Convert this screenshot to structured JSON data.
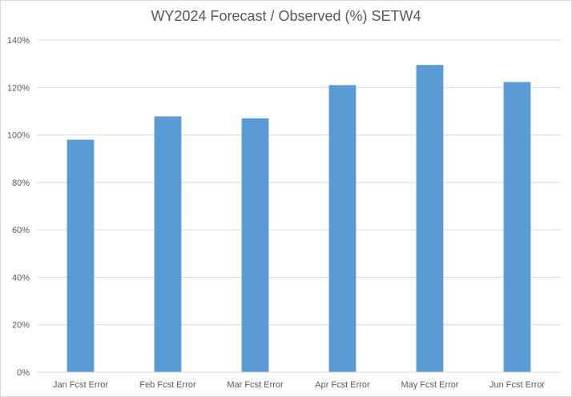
{
  "chart_data": {
    "type": "bar",
    "title": "WY2024 Forecast / Observed (%) SETW4",
    "xlabel": "",
    "ylabel": "",
    "categories": [
      "Jan Fcst Error",
      "Feb Fcst Error",
      "Mar Fcst Error",
      "Apr Fcst Error",
      "May Fcst Error",
      "Jun Fcst Error"
    ],
    "values": [
      98,
      107.8,
      107,
      121,
      129.5,
      122.3
    ],
    "ylim": [
      0,
      140
    ],
    "yticks": [
      0,
      20,
      40,
      60,
      80,
      100,
      120,
      140
    ],
    "ytick_labels": [
      "0%",
      "20%",
      "40%",
      "60%",
      "80%",
      "100%",
      "120%",
      "140%"
    ],
    "grid": true,
    "legend": "none",
    "colors": {
      "bar": "#5b9bd5",
      "grid": "#d9d9d9",
      "text": "#595959"
    }
  }
}
